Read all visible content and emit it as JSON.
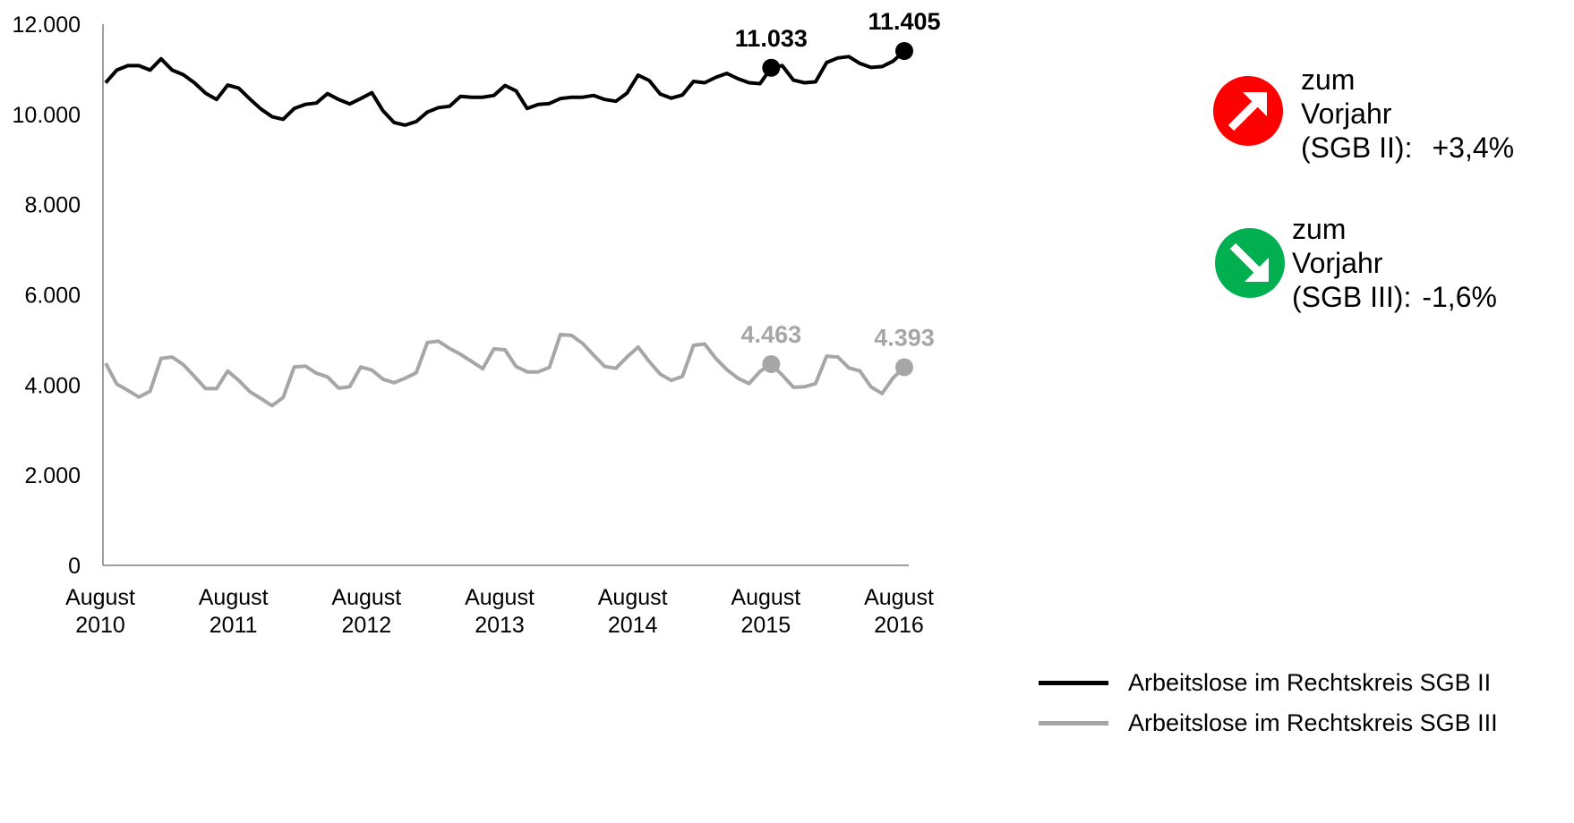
{
  "chart_data": {
    "type": "line",
    "x_ticks": [
      "August\n2010",
      "August\n2011",
      "August\n2012",
      "August\n2013",
      "August\n2014",
      "August\n2015",
      "August\n2016"
    ],
    "y_ticks": [
      "0",
      "2.000",
      "4.000",
      "6.000",
      "8.000",
      "10.000",
      "12.000"
    ],
    "ylim": [
      0,
      12000
    ],
    "x_range": [
      "2010-08",
      "2016-08"
    ],
    "grid": false,
    "legend_placement": "bottom-right",
    "series": [
      {
        "name": "Arbeitslose im Rechtskreis SGB II",
        "color": "#000000",
        "values": [
          10700,
          10980,
          11080,
          11080,
          10980,
          11230,
          10980,
          10880,
          10700,
          10470,
          10330,
          10650,
          10580,
          10340,
          10120,
          9950,
          9890,
          10130,
          10220,
          10250,
          10460,
          10330,
          10230,
          10350,
          10480,
          10080,
          9820,
          9760,
          9840,
          10050,
          10150,
          10180,
          10400,
          10380,
          10380,
          10420,
          10640,
          10520,
          10130,
          10220,
          10240,
          10350,
          10380,
          10380,
          10420,
          10330,
          10290,
          10470,
          10870,
          10750,
          10450,
          10360,
          10430,
          10730,
          10700,
          10820,
          10910,
          10790,
          10700,
          10680,
          11033,
          11080,
          10760,
          10700,
          10720,
          11150,
          11250,
          11280,
          11130,
          11040,
          11060,
          11180,
          11405
        ]
      },
      {
        "name": "Arbeitslose im Rechtskreis SGB III",
        "color": "#a6a6a6",
        "values": [
          4480,
          4020,
          3880,
          3730,
          3860,
          4590,
          4620,
          4450,
          4190,
          3920,
          3920,
          4310,
          4100,
          3850,
          3700,
          3540,
          3720,
          4400,
          4420,
          4260,
          4180,
          3930,
          3960,
          4400,
          4330,
          4130,
          4050,
          4150,
          4270,
          4940,
          4970,
          4810,
          4680,
          4520,
          4360,
          4800,
          4780,
          4410,
          4290,
          4290,
          4390,
          5120,
          5100,
          4920,
          4660,
          4410,
          4370,
          4620,
          4840,
          4520,
          4240,
          4100,
          4190,
          4880,
          4910,
          4590,
          4340,
          4150,
          4030,
          4300,
          4463,
          4220,
          3950,
          3960,
          4030,
          4640,
          4620,
          4380,
          4310,
          3960,
          3810,
          4160,
          4393
        ]
      }
    ],
    "annotations": [
      {
        "series": 0,
        "index": 60,
        "label": "11.033"
      },
      {
        "series": 0,
        "index": 72,
        "label": "11.405"
      },
      {
        "series": 1,
        "index": 60,
        "label": "4.463"
      },
      {
        "series": 1,
        "index": 72,
        "label": "4.393"
      }
    ]
  },
  "callouts": [
    {
      "icon": "arrow-up-right-icon",
      "color": "#ff0000",
      "line1": "zum",
      "line2": "Vorjahr",
      "line3": "(SGB II):",
      "change": "+3,4%"
    },
    {
      "icon": "arrow-down-right-icon",
      "color": "#00b050",
      "line1": "zum",
      "line2": "Vorjahr",
      "line3": "(SGB III):",
      "change": "-1,6%"
    }
  ],
  "legend": [
    {
      "label": "Arbeitslose im Rechtskreis SGB II",
      "color": "#000000"
    },
    {
      "label": "Arbeitslose im Rechtskreis SGB III",
      "color": "#a6a6a6"
    }
  ]
}
